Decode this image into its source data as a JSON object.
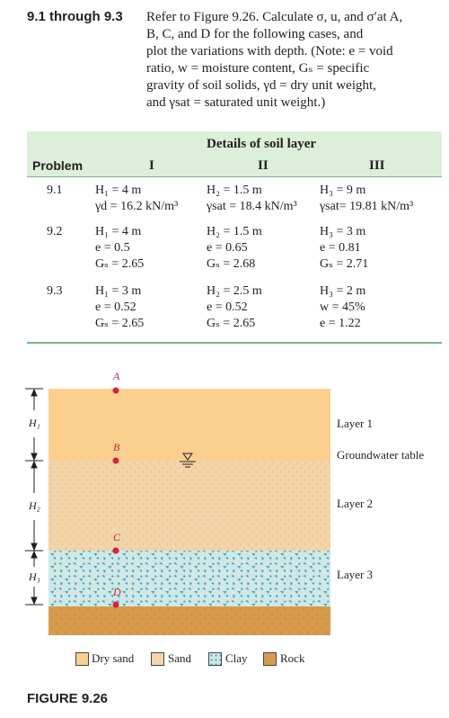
{
  "problem": {
    "label": "9.1 through 9.3",
    "lines": [
      "Refer to Figure 9.26. Calculate σ, u, and σ′at A,",
      "B, C, and D for the  following cases, and",
      "plot the variations with depth. (Note: e = void",
      "ratio, w = moisture content, Gₛ = specific",
      "gravity of soil solids, γd = dry unit weight,",
      "and γsat = saturated unit weight.)"
    ]
  },
  "table": {
    "group_header": "Details of soil layer",
    "col_problem": "Problem",
    "col_1": "I",
    "col_2": "II",
    "col_3": "III",
    "rows": [
      {
        "problem": "9.1",
        "c1": [
          "H₁ = 4 m",
          "γd = 16.2 kN/m³"
        ],
        "c2": [
          "H₂ = 1.5 m",
          "γsat = 18.4 kN/m³"
        ],
        "c3": [
          "H₃ = 9 m",
          "γsat= 19.81 kN/m³"
        ]
      },
      {
        "problem": "9.2",
        "c1": [
          "H₁ = 4 m",
          "e = 0.5",
          "Gₛ = 2.65"
        ],
        "c2": [
          "H₂ = 1.5 m",
          "e = 0.65",
          "Gₛ = 2.68"
        ],
        "c3": [
          "H₃ = 3 m",
          "e = 0.81",
          "Gₛ = 2.71"
        ]
      },
      {
        "problem": "9.3",
        "c1": [
          "H₁ = 3 m",
          "e = 0.52",
          "Gₛ = 2.65"
        ],
        "c2": [
          "H₂ = 2.5 m",
          "e = 0.52",
          "Gₛ = 2.65"
        ],
        "c3": [
          "H₃ = 2 m",
          "w = 45%",
          "e = 1.22"
        ]
      }
    ]
  },
  "figure": {
    "points": [
      "A",
      "B",
      "C",
      "D"
    ],
    "dims": [
      "H₁",
      "H₂",
      "H₃"
    ],
    "layer_labels": [
      "Layer 1",
      "Groundwater table",
      "Layer 2",
      "Layer 3"
    ],
    "legend": [
      "Dry sand",
      "Sand",
      "Clay",
      "Rock"
    ],
    "caption": "FIGURE 9.26",
    "colors": {
      "dry_sand": "#fbd08f",
      "sand": "#f3d5a9",
      "clay_bg": "#d2e8e3",
      "clay_fleck": "#3aa3cf",
      "rock": "#d89a4c",
      "point": "#d2233f"
    }
  }
}
